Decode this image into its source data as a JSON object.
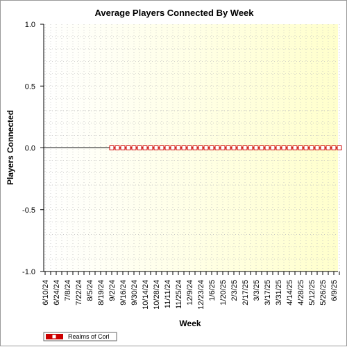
{
  "chart_data": {
    "type": "line",
    "title": "Average Players Connected By Week",
    "xlabel": "Week",
    "ylabel": "Players Connected",
    "ylim": [
      -1.0,
      1.0
    ],
    "y_ticks": [
      "1.0",
      "0.5",
      "0.0",
      "-0.5",
      "-1.0"
    ],
    "grid": true,
    "x_tick_labels": [
      "6/10/24",
      "6/24/24",
      "7/8/24",
      "7/22/24",
      "8/5/24",
      "8/19/24",
      "9/2/24",
      "9/16/24",
      "9/30/24",
      "10/14/24",
      "10/28/24",
      "11/11/24",
      "11/25/24",
      "12/9/24",
      "12/23/24",
      "1/6/25",
      "1/20/25",
      "2/3/25",
      "2/17/25",
      "3/3/25",
      "3/17/25",
      "3/31/25",
      "4/14/25",
      "4/28/25",
      "5/12/25",
      "5/26/25",
      "6/9/25"
    ],
    "x": [
      "6/10/24",
      "6/17/24",
      "6/24/24",
      "7/1/24",
      "7/8/24",
      "7/15/24",
      "7/22/24",
      "7/29/24",
      "8/5/24",
      "8/12/24",
      "8/19/24",
      "8/26/24",
      "9/2/24",
      "9/9/24",
      "9/16/24",
      "9/23/24",
      "9/30/24",
      "10/7/24",
      "10/14/24",
      "10/21/24",
      "10/28/24",
      "11/4/24",
      "11/11/24",
      "11/18/24",
      "11/25/24",
      "12/2/24",
      "12/9/24",
      "12/16/24",
      "12/23/24",
      "12/30/24",
      "1/6/25",
      "1/13/25",
      "1/20/25",
      "1/27/25",
      "2/3/25",
      "2/10/25",
      "2/17/25",
      "2/24/25",
      "3/3/25",
      "3/10/25",
      "3/17/25",
      "3/24/25",
      "3/31/25",
      "4/7/25",
      "4/14/25",
      "4/21/25",
      "4/28/25",
      "5/5/25",
      "5/12/25",
      "5/19/25",
      "5/26/25",
      "6/2/25",
      "6/9/25",
      "6/16/25"
    ],
    "series": [
      {
        "name": "Realms of Corl",
        "color": "#cc0000",
        "marker": "square",
        "first_marker_index": 12,
        "values": [
          0,
          0,
          0,
          0,
          0,
          0,
          0,
          0,
          0,
          0,
          0,
          0,
          0,
          0,
          0,
          0,
          0,
          0,
          0,
          0,
          0,
          0,
          0,
          0,
          0,
          0,
          0,
          0,
          0,
          0,
          0,
          0,
          0,
          0,
          0,
          0,
          0,
          0,
          0,
          0,
          0,
          0,
          0,
          0,
          0,
          0,
          0,
          0,
          0,
          0,
          0,
          0,
          0,
          0
        ]
      }
    ],
    "legend_position": "bottom-left",
    "plot_background": [
      "#ffffff",
      "#ffffcc"
    ]
  }
}
